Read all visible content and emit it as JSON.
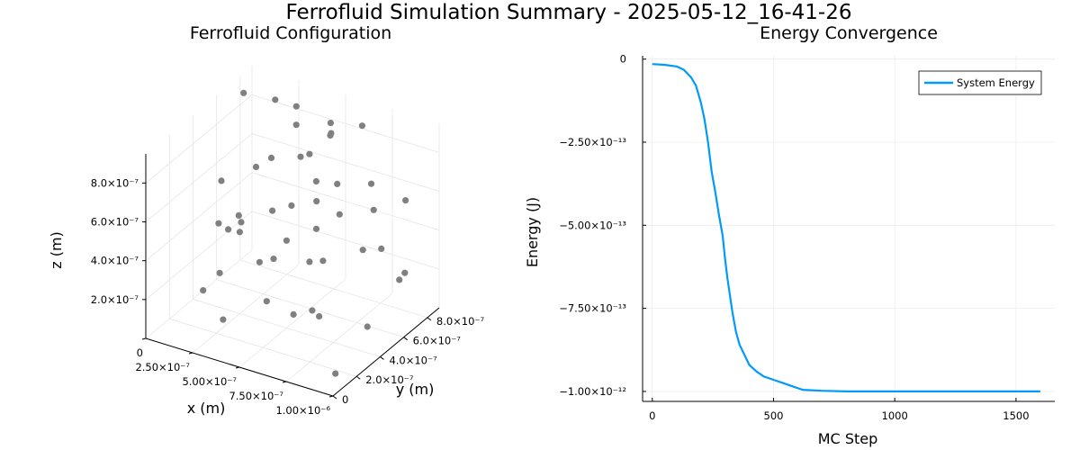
{
  "figure": {
    "suptitle": "Ferrofluid Simulation Summary - 2025-05-12_16-41-26"
  },
  "chart_data": [
    {
      "type": "scatter",
      "title": "Ferrofluid Configuration",
      "xlabel": "x (m)",
      "ylabel": "y (m)",
      "zlabel": "z (m)",
      "xlim": [
        0,
        1e-06
      ],
      "ylim": [
        0,
        9e-07
      ],
      "zlim": [
        0,
        9.5e-07
      ],
      "x_ticks": [
        {
          "v": 0,
          "label": "0"
        },
        {
          "v": 2.5e-07,
          "label": "2.50×10⁻⁷"
        },
        {
          "v": 5e-07,
          "label": "5.00×10⁻⁷"
        },
        {
          "v": 7.5e-07,
          "label": "7.50×10⁻⁷"
        },
        {
          "v": 1e-06,
          "label": "1.00×10⁻⁶"
        }
      ],
      "y_ticks": [
        {
          "v": 0,
          "label": "0"
        },
        {
          "v": 2e-07,
          "label": "2.0×10⁻⁷"
        },
        {
          "v": 4e-07,
          "label": "4.0×10⁻⁷"
        },
        {
          "v": 6e-07,
          "label": "6.0×10⁻⁷"
        },
        {
          "v": 8e-07,
          "label": "8.0×10⁻⁷"
        }
      ],
      "z_ticks": [
        {
          "v": 2e-07,
          "label": "2.0×10⁻⁷"
        },
        {
          "v": 4e-07,
          "label": "4.0×10⁻⁷"
        },
        {
          "v": 6e-07,
          "label": "6.0×10⁻⁷"
        },
        {
          "v": 8e-07,
          "label": "8.0×10⁻⁷"
        }
      ],
      "marker_color": "#808080",
      "grid": true,
      "points": [
        [
          5e-08,
          7.5e-07,
          9e-07
        ],
        [
          3.5e-07,
          7.2e-07,
          8.4e-07
        ],
        [
          2.8e-07,
          6.2e-07,
          7e-07
        ],
        [
          4e-07,
          3e-07,
          8.5e-07
        ],
        [
          5.5e-07,
          2e-07,
          7.2e-07
        ],
        [
          4.8e-07,
          5.5e-07,
          8e-07
        ],
        [
          6.2e-07,
          8.5e-07,
          8.5e-07
        ],
        [
          5.8e-07,
          6.5e-07,
          9e-07
        ],
        [
          7e-07,
          8e-07,
          6e-07
        ],
        [
          2.2e-07,
          3.5e-07,
          4.5e-07
        ],
        [
          2.5e-07,
          4e-07,
          4.2e-07
        ],
        [
          3e-07,
          1.5e-07,
          3.5e-07
        ],
        [
          1.2e-07,
          4.5e-07,
          6.2e-07
        ],
        [
          4.5e-07,
          2.5e-07,
          4e-07
        ],
        [
          5e-07,
          4e-07,
          4.5e-07
        ],
        [
          6e-07,
          5.5e-07,
          3e-07
        ],
        [
          4e-07,
          6e-07,
          5e-07
        ],
        [
          3.5e-07,
          1e-07,
          1.5e-07
        ],
        [
          7e-07,
          3e-07,
          2e-07
        ],
        [
          8e-07,
          2e-07,
          2.5e-07
        ],
        [
          9e-07,
          4.5e-07,
          1e-07
        ],
        [
          9.5e-07,
          1e-07,
          5e-08
        ],
        [
          6.5e-07,
          9e-07,
          4e-07
        ],
        [
          7.5e-07,
          6.5e-07,
          3.5e-07
        ],
        [
          8.5e-07,
          8e-07,
          1.5e-07
        ],
        [
          5.5e-07,
          7.5e-07,
          5.8e-07
        ],
        [
          3e-07,
          8e-07,
          8.8e-07
        ],
        [
          2e-07,
          3e-07,
          5e-07
        ],
        [
          4.5e-07,
          8.5e-07,
          7.5e-07
        ],
        [
          6e-07,
          3e-07,
          1.5e-07
        ],
        [
          7.2e-07,
          5e-07,
          6e-07
        ],
        [
          8.2e-07,
          9e-07,
          5e-07
        ],
        [
          1.5e-07,
          5.5e-07,
          4e-07
        ],
        [
          3.8e-07,
          4.8e-07,
          2.8e-07
        ],
        [
          2.5e-07,
          7e-07,
          9.5e-07
        ],
        [
          5.2e-07,
          6.2e-07,
          6.5e-07
        ],
        [
          6.6e-07,
          4e-07,
          7e-07
        ],
        [
          4.2e-07,
          9e-07,
          7.8e-07
        ],
        [
          8.8e-07,
          6e-07,
          4.2e-07
        ],
        [
          3.2e-07,
          8.8e-07,
          6e-07
        ],
        [
          1.8e-07,
          2e-07,
          2e-07
        ],
        [
          7.8e-07,
          1.5e-07,
          5.5e-07
        ],
        [
          5.7e-07,
          1.2e-07,
          3e-07
        ],
        [
          9.3e-07,
          7.2e-07,
          2.5e-07
        ],
        [
          1e-07,
          6.5e-07,
          3e-07
        ],
        [
          4.7e-07,
          7e-07,
          3.5e-07
        ]
      ]
    },
    {
      "type": "line",
      "title": "Energy Convergence",
      "xlabel": "MC Step",
      "ylabel": "Energy (J)",
      "xlim": [
        -40,
        1660
      ],
      "ylim": [
        -1.03e-12,
        1e-14
      ],
      "x_ticks": [
        {
          "v": 0,
          "label": "0"
        },
        {
          "v": 500,
          "label": "500"
        },
        {
          "v": 1000,
          "label": "1000"
        },
        {
          "v": 1500,
          "label": "1500"
        }
      ],
      "y_ticks": [
        {
          "v": 0,
          "label": "0"
        },
        {
          "v": -2.5e-13,
          "label": "−2.50×10⁻¹³"
        },
        {
          "v": -5e-13,
          "label": "−5.00×10⁻¹³"
        },
        {
          "v": -7.5e-13,
          "label": "−7.50×10⁻¹³"
        },
        {
          "v": -1e-12,
          "label": "−1.00×10⁻¹²"
        }
      ],
      "grid": true,
      "legend": "top-right",
      "series": [
        {
          "name": "System Energy",
          "color": "#009AFA",
          "x": [
            0,
            50,
            100,
            130,
            160,
            180,
            200,
            215,
            230,
            245,
            260,
            275,
            290,
            300,
            310,
            320,
            330,
            345,
            360,
            380,
            400,
            430,
            460,
            500,
            540,
            580,
            620,
            700,
            800,
            1000,
            1200,
            1400,
            1600
          ],
          "y": [
            -1.5e-14,
            -1.7e-14,
            -2.2e-14,
            -3.2e-14,
            -5.5e-14,
            -8e-14,
            -1.3e-13,
            -1.8e-13,
            -2.5e-13,
            -3.4e-13,
            -4e-13,
            -4.7e-13,
            -5.3e-13,
            -6e-13,
            -6.6e-13,
            -7.1e-13,
            -7.6e-13,
            -8.2e-13,
            -8.6e-13,
            -8.9e-13,
            -9.2e-13,
            -9.4e-13,
            -9.55e-13,
            -9.65e-13,
            -9.75e-13,
            -9.85e-13,
            -9.95e-13,
            -9.98e-13,
            -1e-12,
            -1e-12,
            -1e-12,
            -1e-12,
            -1e-12
          ]
        }
      ]
    }
  ]
}
